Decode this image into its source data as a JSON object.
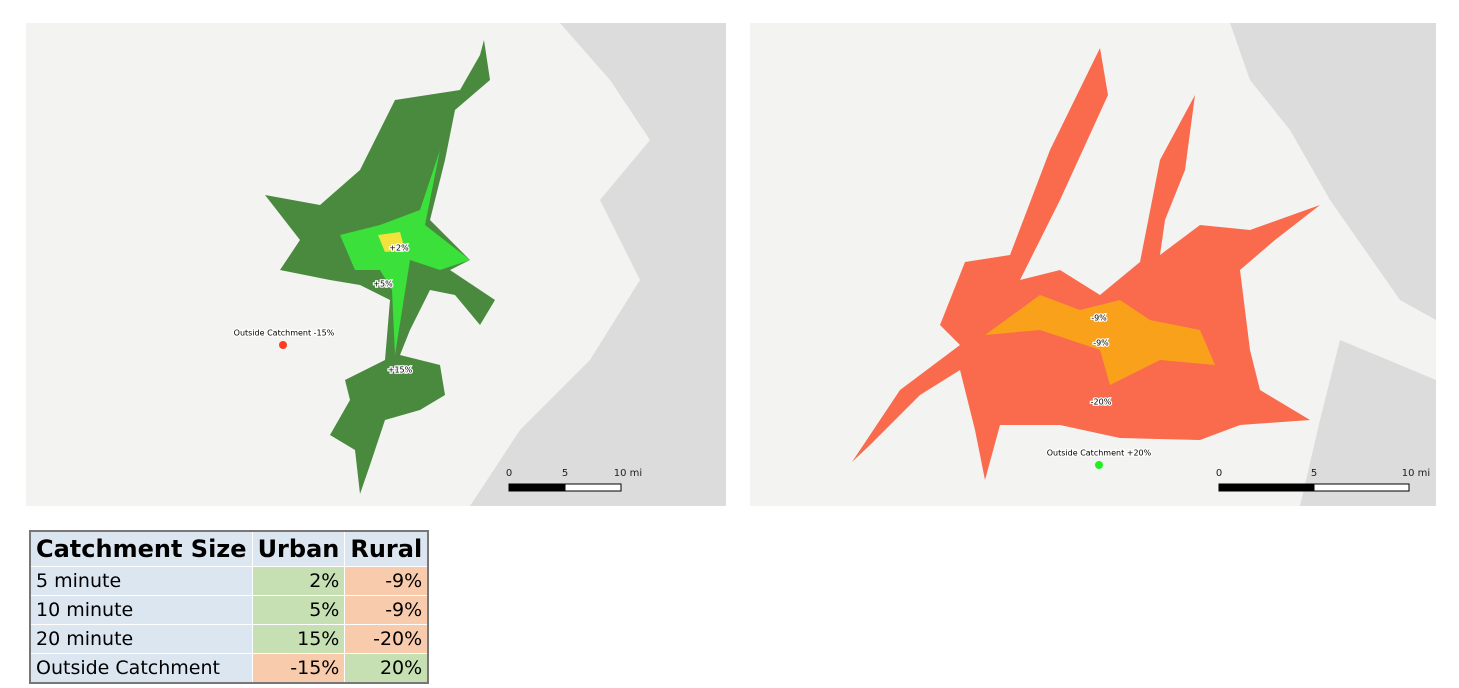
{
  "maps": [
    {
      "labels": [
        "+2%",
        "+5%",
        "+15%",
        "Outside Catchment -15%"
      ],
      "scale": [
        "0",
        "5",
        "10 mi"
      ]
    },
    {
      "labels": [
        "-9%",
        "-9%",
        "-20%",
        "Outside Catchment +20%"
      ],
      "scale": [
        "0",
        "5",
        "10 mi"
      ]
    }
  ],
  "table": {
    "header": [
      "Catchment Size",
      "Urban",
      "Rural"
    ],
    "rows": [
      [
        "5 minute",
        "2%",
        "-9%"
      ],
      [
        "10 minute",
        "5%",
        "-9%"
      ],
      [
        "20 minute",
        "15%",
        "-20%"
      ],
      [
        "Outside Catchment",
        "-15%",
        "20%"
      ]
    ]
  }
}
